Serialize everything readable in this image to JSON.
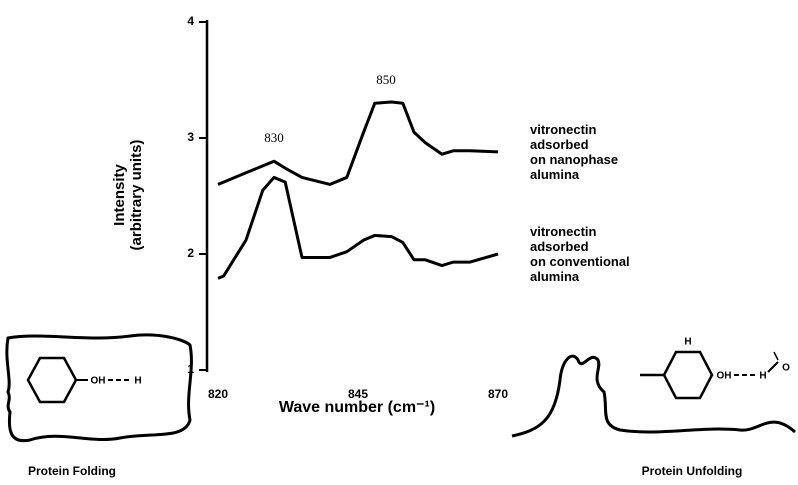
{
  "chart_data": {
    "type": "line",
    "y_label": "Intensity\n(arbitrary units)",
    "x_label": "Wave number (cm⁻¹)",
    "x": [
      820,
      821,
      825,
      828,
      830,
      832,
      835,
      840,
      843,
      846,
      848,
      851,
      853,
      855,
      857,
      860,
      862,
      865,
      870
    ],
    "series": [
      {
        "name": "vitronectin\nadsorbed\non nanophase\nalumina",
        "color": "#000000",
        "values": [
          2.6,
          2.62,
          2.7,
          2.76,
          2.8,
          2.74,
          2.66,
          2.6,
          2.66,
          3.05,
          3.3,
          3.31,
          3.3,
          3.05,
          2.96,
          2.86,
          2.89,
          2.89,
          2.88
        ]
      },
      {
        "name": "vitronectin\nadsorbed\non conventional\nalumina",
        "color": "#000000",
        "values": [
          1.79,
          1.81,
          2.12,
          2.55,
          2.66,
          2.62,
          1.97,
          1.97,
          2.02,
          2.12,
          2.16,
          2.15,
          2.1,
          1.95,
          1.95,
          1.9,
          1.93,
          1.93,
          2.0
        ]
      }
    ],
    "annotations": [
      {
        "text": "830",
        "x": 830,
        "y": 2.8
      },
      {
        "text": "850",
        "x": 850,
        "y": 3.3
      }
    ],
    "xlim": [
      820,
      870
    ],
    "xticks": [
      820,
      845,
      870
    ],
    "ylim": [
      1,
      4
    ],
    "yticks": [
      1,
      2,
      3,
      4
    ]
  },
  "diagrams": {
    "folding": {
      "label": "Protein Folding",
      "oh": "OH",
      "h": "H"
    },
    "unfolding": {
      "label": "Protein Unfolding",
      "oh": "OH",
      "h": "H",
      "water_h": "H",
      "water_o": "O"
    }
  }
}
